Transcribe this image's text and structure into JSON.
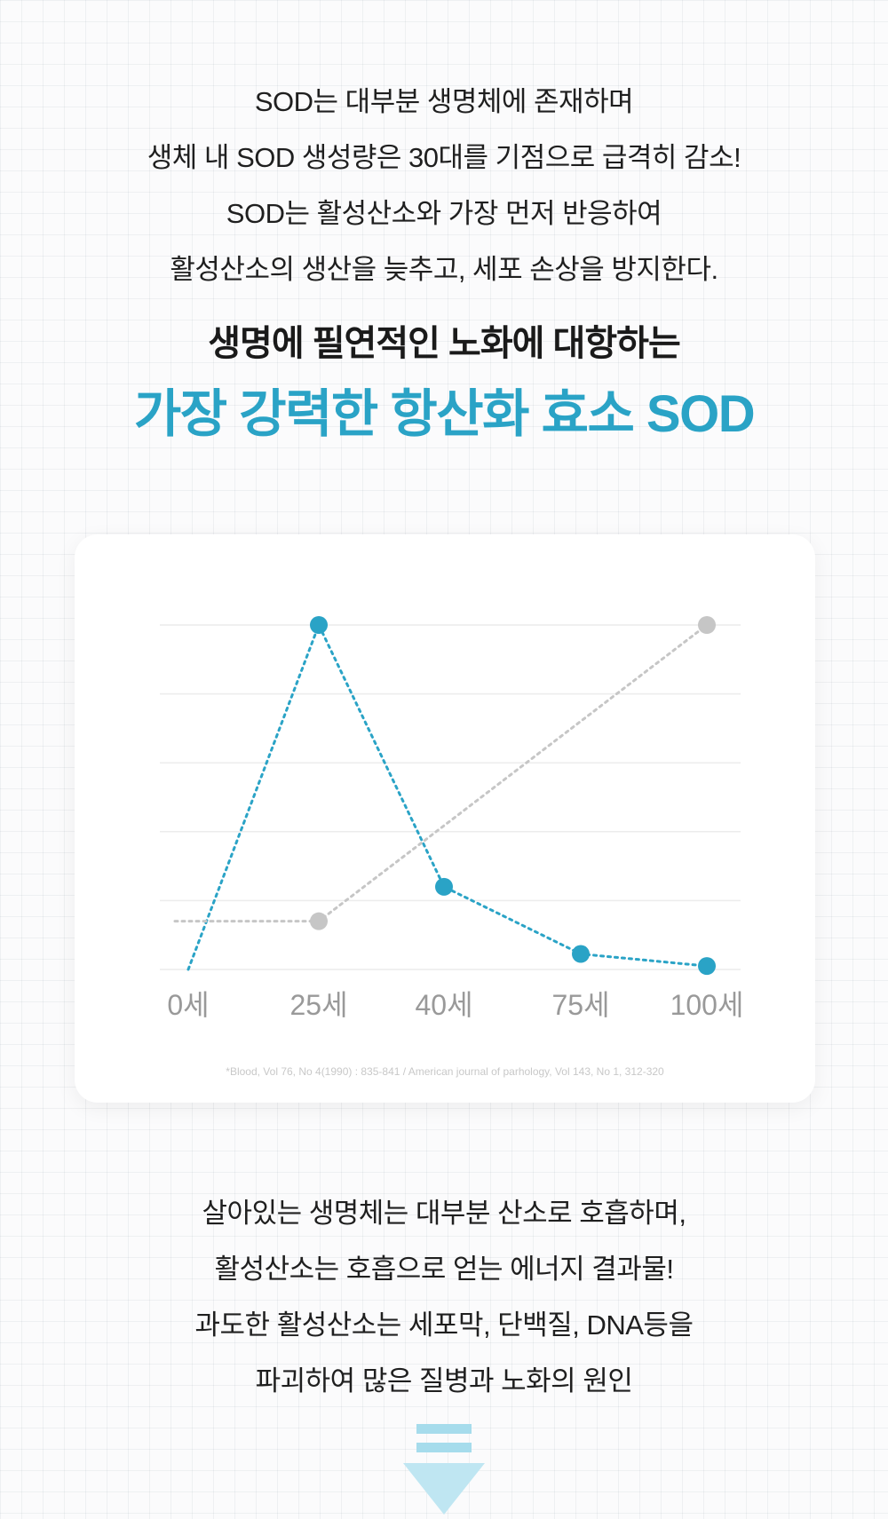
{
  "intro": {
    "lines": [
      "SOD는 대부분 생명체에 존재하며",
      "생체 내 SOD 생성량은 30대를 기점으로 급격히 감소!",
      "SOD는 활성산소와 가장 먼저 반응하여",
      "활성산소의 생산을 늦추고, 세포 손상을 방지한다."
    ]
  },
  "headline": {
    "line1": "생명에 필연적인 노화에 대항하는",
    "line2": "가장 강력한 항산화 효소 SOD"
  },
  "chart_data": {
    "type": "line",
    "categories": [
      "0세",
      "25세",
      "40세",
      "75세",
      "100세"
    ],
    "x_positions": [
      0,
      25,
      40,
      75,
      100
    ],
    "series": [
      {
        "values": [
          0,
          100,
          24,
          4.5,
          1
        ],
        "color": "#2aa3c6",
        "marker_at_first": false,
        "line_style": "dotted"
      },
      {
        "values": [
          14,
          14,
          null,
          null,
          100
        ],
        "color": "#c6c6c6",
        "marker_at_first": false,
        "line_style": "dotted"
      }
    ],
    "ylim": [
      0,
      100
    ],
    "grid": true,
    "grid_lines": 6,
    "source": "*Blood, Vol 76, No 4(1990) : 835-841 / American journal of parhology, Vol 143, No 1, 312-320"
  },
  "outro": {
    "lines": [
      "살아있는 생명체는 대부분 산소로 호흡하며,",
      "활성산소는 호흡으로 얻는 에너지 결과물!",
      "과도한 활성산소는 세포막, 단백질, DNA등을",
      "파괴하여 많은 질병과 노화의 원인"
    ]
  },
  "arrow": {
    "icon": "down-arrow-icon",
    "bar_color": "#a6dcec",
    "triangle_color": "#bfe6f2"
  }
}
